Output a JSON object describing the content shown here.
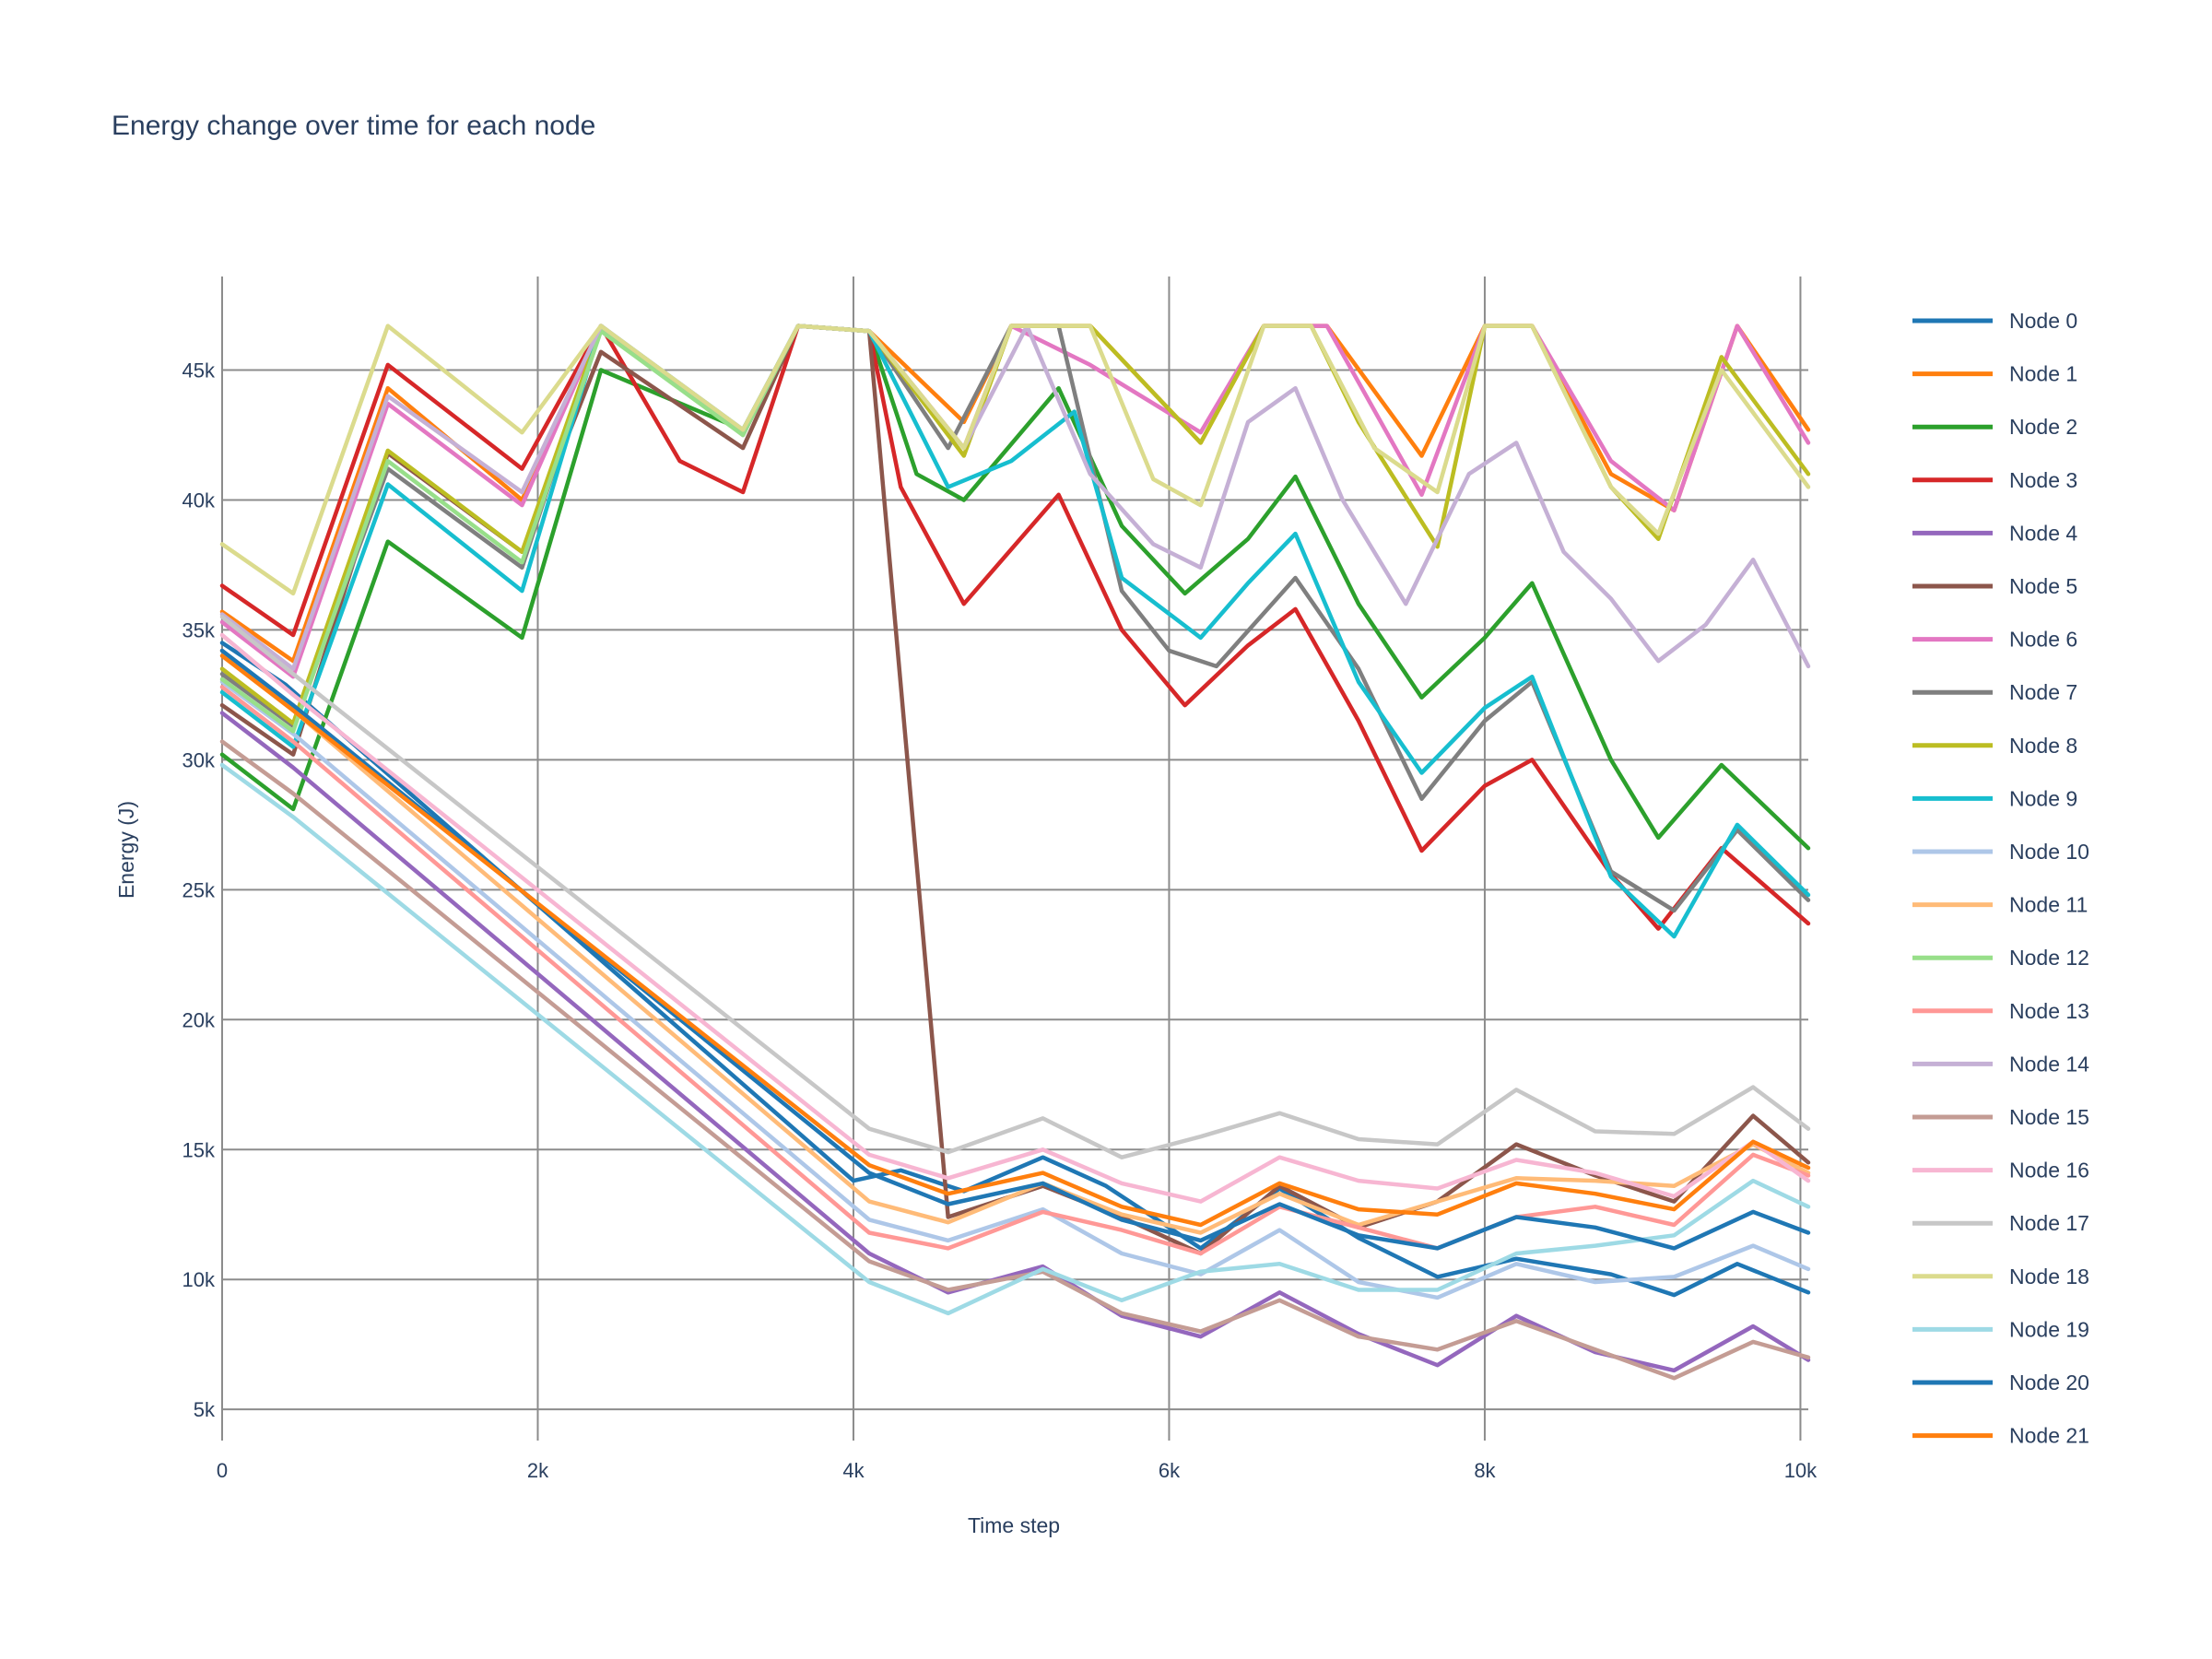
{
  "chart_data": {
    "type": "line",
    "title": "Energy change over time for each node",
    "xlabel": "Time step",
    "ylabel": "Energy (J)",
    "xlim": [
      0,
      10050
    ],
    "ylim": [
      3800,
      48600
    ],
    "x_ticks": [
      {
        "v": 0,
        "label": "0"
      },
      {
        "v": 2000,
        "label": "2k"
      },
      {
        "v": 4000,
        "label": "4k"
      },
      {
        "v": 6000,
        "label": "6k"
      },
      {
        "v": 8000,
        "label": "8k"
      },
      {
        "v": 10000,
        "label": "10k"
      }
    ],
    "y_ticks": [
      {
        "v": 5000,
        "label": "5k"
      },
      {
        "v": 10000,
        "label": "10k"
      },
      {
        "v": 15000,
        "label": "15k"
      },
      {
        "v": 20000,
        "label": "20k"
      },
      {
        "v": 25000,
        "label": "25k"
      },
      {
        "v": 30000,
        "label": "30k"
      },
      {
        "v": 35000,
        "label": "35k"
      },
      {
        "v": 40000,
        "label": "40k"
      },
      {
        "v": 45000,
        "label": "45k"
      }
    ],
    "grid": true,
    "legend_position": "right",
    "series": [
      {
        "name": "Node 0",
        "color": "#1f77b4",
        "x": [
          0,
          400,
          4000,
          4300,
          4700,
          5200,
          5600,
          6200,
          6700,
          7200,
          7700,
          8200,
          8800,
          9200,
          9600,
          10050
        ],
        "y": [
          34500,
          32900,
          13800,
          14200,
          13400,
          14700,
          13600,
          11200,
          13500,
          11600,
          10100,
          10800,
          10200,
          9400,
          10600,
          9500
        ]
      },
      {
        "name": "Node 1",
        "color": "#ff7f0e",
        "x": [
          0,
          450,
          1050,
          1900,
          2400,
          3300,
          3650,
          4100,
          4700,
          5000,
          5500,
          6200,
          6600,
          7000,
          7600,
          8000,
          8300,
          8800,
          9200,
          9600,
          10050
        ],
        "y": [
          35700,
          33800,
          44300,
          40000,
          46700,
          42600,
          46700,
          46500,
          43000,
          46700,
          46700,
          42200,
          46700,
          46700,
          41700,
          46700,
          46700,
          41000,
          39600,
          46700,
          42700
        ]
      },
      {
        "name": "Node 2",
        "color": "#2ca02c",
        "x": [
          0,
          450,
          1050,
          1900,
          2400,
          3300,
          3650,
          4100,
          4400,
          4700,
          5300,
          5700,
          6100,
          6500,
          6800,
          7200,
          7600,
          8000,
          8300,
          8800,
          9100,
          9500,
          10050
        ],
        "y": [
          30200,
          28100,
          38400,
          34700,
          45000,
          42700,
          46700,
          46500,
          41000,
          40000,
          44300,
          39000,
          36400,
          38500,
          40900,
          36000,
          32400,
          34700,
          36800,
          30000,
          27000,
          29800,
          26600
        ]
      },
      {
        "name": "Node 3",
        "color": "#d62728",
        "x": [
          0,
          450,
          1050,
          1900,
          2400,
          2900,
          3300,
          3650,
          4100,
          4300,
          4700,
          5300,
          5700,
          6100,
          6500,
          6800,
          7200,
          7600,
          8000,
          8300,
          8800,
          9100,
          9500,
          10050
        ],
        "y": [
          36700,
          34800,
          45200,
          41200,
          46700,
          41500,
          40300,
          46700,
          46500,
          40500,
          36000,
          40200,
          35000,
          32100,
          34400,
          35800,
          31500,
          26500,
          29000,
          30000,
          25600,
          23500,
          26600,
          23700
        ]
      },
      {
        "name": "Node 4",
        "color": "#9467bd",
        "x": [
          0,
          450,
          4100,
          4600,
          5200,
          5700,
          6200,
          6700,
          7200,
          7700,
          8200,
          8700,
          9200,
          9700,
          10050
        ],
        "y": [
          31800,
          29700,
          11000,
          9500,
          10500,
          8600,
          7800,
          9500,
          7900,
          6700,
          8600,
          7200,
          6500,
          8200,
          6900
        ]
      },
      {
        "name": "Node 5",
        "color": "#8c564b",
        "x": [
          0,
          450,
          1050,
          1900,
          2400,
          3300,
          3650,
          4100,
          4600,
          5200,
          5700,
          6200,
          6700,
          7200,
          7700,
          8200,
          8700,
          9200,
          9700,
          10050
        ],
        "y": [
          32100,
          30200,
          41800,
          38000,
          45700,
          42000,
          46700,
          46500,
          12400,
          13600,
          12400,
          11000,
          13600,
          12000,
          13000,
          15200,
          14000,
          13000,
          16300,
          14500
        ]
      },
      {
        "name": "Node 6",
        "color": "#e377c2",
        "x": [
          0,
          450,
          1050,
          1900,
          2400,
          3300,
          3650,
          4100,
          4700,
          5000,
          5500,
          6200,
          6600,
          7000,
          7600,
          8000,
          8300,
          8800,
          9200,
          9600,
          10050
        ],
        "y": [
          35300,
          33200,
          43700,
          39800,
          46700,
          42600,
          46700,
          46500,
          42000,
          46700,
          45200,
          42600,
          46700,
          46700,
          40200,
          46700,
          46700,
          41500,
          39600,
          46700,
          42200
        ]
      },
      {
        "name": "Node 7",
        "color": "#7f7f7f",
        "x": [
          0,
          450,
          1050,
          1900,
          2400,
          3300,
          3650,
          4100,
          4600,
          5000,
          5300,
          5700,
          6000,
          6300,
          6800,
          7200,
          7600,
          8000,
          8300,
          8800,
          9200,
          9600,
          10050
        ],
        "y": [
          33300,
          31300,
          41200,
          37400,
          46700,
          42500,
          46700,
          46500,
          42000,
          46700,
          46700,
          36500,
          34200,
          33600,
          37000,
          33500,
          28500,
          31500,
          33000,
          25700,
          24200,
          27300,
          24600
        ]
      },
      {
        "name": "Node 8",
        "color": "#bcbd22",
        "x": [
          0,
          450,
          1050,
          1900,
          2400,
          3300,
          3650,
          4100,
          4700,
          5000,
          5500,
          6200,
          6600,
          6900,
          7200,
          7700,
          8000,
          8300,
          8800,
          9100,
          9500,
          10050
        ],
        "y": [
          33500,
          31400,
          41900,
          38000,
          46700,
          42600,
          46700,
          46500,
          41700,
          46700,
          46700,
          42200,
          46700,
          46700,
          43000,
          38200,
          46700,
          46700,
          40500,
          38500,
          45500,
          41000
        ]
      },
      {
        "name": "Node 9",
        "color": "#17becf",
        "x": [
          0,
          450,
          1050,
          1900,
          2400,
          3300,
          3650,
          4100,
          4600,
          5000,
          5400,
          5700,
          6200,
          6500,
          6800,
          7200,
          7600,
          8000,
          8300,
          8800,
          9200,
          9600,
          10050
        ],
        "y": [
          32600,
          30500,
          40600,
          36500,
          46700,
          42700,
          46700,
          46500,
          40500,
          41500,
          43400,
          37000,
          34700,
          36800,
          38700,
          33000,
          29500,
          32000,
          33200,
          25500,
          23200,
          27500,
          24800
        ]
      },
      {
        "name": "Node 10",
        "color": "#aec7e8",
        "x": [
          0,
          450,
          4100,
          4600,
          5200,
          5700,
          6200,
          6700,
          7200,
          7700,
          8200,
          8700,
          9200,
          9700,
          10050
        ],
        "y": [
          33000,
          31000,
          12300,
          11500,
          12700,
          11000,
          10200,
          11900,
          9900,
          9300,
          10600,
          9900,
          10100,
          11300,
          10400
        ]
      },
      {
        "name": "Node 11",
        "color": "#ffbb78",
        "x": [
          0,
          450,
          4100,
          4600,
          5200,
          5700,
          6200,
          6700,
          7200,
          7700,
          8200,
          8700,
          9200,
          9700,
          10050
        ],
        "y": [
          34200,
          31900,
          13000,
          12200,
          13700,
          12500,
          11800,
          13300,
          12100,
          13000,
          13900,
          13800,
          13600,
          15200,
          14100
        ]
      },
      {
        "name": "Node 12",
        "color": "#98df8a",
        "x": [
          0,
          450,
          1050,
          1900,
          2400,
          3300,
          3650,
          4100
        ],
        "y": [
          33100,
          31100,
          41500,
          37600,
          46500,
          42500,
          46700,
          46500
        ]
      },
      {
        "name": "Node 13",
        "color": "#ff9896",
        "x": [
          0,
          450,
          4100,
          4600,
          5200,
          5700,
          6200,
          6700,
          7200,
          7700,
          8200,
          8700,
          9200,
          9700,
          10050
        ],
        "y": [
          32800,
          30700,
          11800,
          11200,
          12600,
          11900,
          11000,
          12800,
          12000,
          11200,
          12400,
          12800,
          12100,
          14800,
          14000
        ]
      },
      {
        "name": "Node 14",
        "color": "#c5b0d5",
        "x": [
          0,
          450,
          1050,
          1900,
          2400,
          3300,
          3650,
          4100,
          4700,
          5100,
          5500,
          5900,
          6200,
          6500,
          6800,
          7100,
          7500,
          7900,
          8200,
          8500,
          8800,
          9100,
          9400,
          9700,
          10050
        ],
        "y": [
          35600,
          33500,
          44000,
          40300,
          46700,
          42700,
          46700,
          46500,
          42000,
          46700,
          41000,
          38300,
          37400,
          43000,
          44300,
          40000,
          36000,
          41000,
          42200,
          38000,
          36200,
          33800,
          35200,
          37700,
          33600
        ]
      },
      {
        "name": "Node 15",
        "color": "#c49c94",
        "x": [
          0,
          450,
          4100,
          4600,
          5200,
          5700,
          6200,
          6700,
          7200,
          7700,
          8200,
          8700,
          9200,
          9700,
          10050
        ],
        "y": [
          30700,
          28700,
          10700,
          9600,
          10300,
          8700,
          8000,
          9200,
          7800,
          7300,
          8400,
          7300,
          6200,
          7600,
          7000
        ]
      },
      {
        "name": "Node 16",
        "color": "#f7b6d2",
        "x": [
          0,
          450,
          4100,
          4600,
          5200,
          5700,
          6200,
          6700,
          7200,
          7700,
          8200,
          8700,
          9200,
          9700,
          10050
        ],
        "y": [
          34800,
          32500,
          14800,
          13900,
          15000,
          13700,
          13000,
          14700,
          13800,
          13500,
          14600,
          14100,
          13200,
          15300,
          13800
        ]
      },
      {
        "name": "Node 17",
        "color": "#c7c7c7",
        "x": [
          0,
          450,
          4100,
          4600,
          5200,
          5700,
          6200,
          6700,
          7200,
          7700,
          8200,
          8700,
          9200,
          9700,
          10050
        ],
        "y": [
          35500,
          33300,
          15800,
          14900,
          16200,
          14700,
          15500,
          16400,
          15400,
          15200,
          17300,
          15700,
          15600,
          17400,
          15800
        ]
      },
      {
        "name": "Node 18",
        "color": "#dbdb8d",
        "x": [
          0,
          450,
          1050,
          1900,
          2400,
          3300,
          3650,
          4100,
          4700,
          5000,
          5500,
          5900,
          6200,
          6600,
          6900,
          7300,
          7700,
          8000,
          8300,
          8800,
          9100,
          9500,
          10050
        ],
        "y": [
          38300,
          36400,
          46700,
          42600,
          46700,
          42700,
          46700,
          46500,
          42000,
          46700,
          46700,
          40800,
          39800,
          46700,
          46700,
          42000,
          40300,
          46700,
          46700,
          40500,
          38700,
          45000,
          40500
        ]
      },
      {
        "name": "Node 19",
        "color": "#9edae5",
        "x": [
          0,
          450,
          4100,
          4600,
          5200,
          5700,
          6200,
          6700,
          7200,
          7700,
          8200,
          8700,
          9200,
          9700,
          10050
        ],
        "y": [
          29800,
          27800,
          9900,
          8700,
          10400,
          9200,
          10300,
          10600,
          9600,
          9600,
          11000,
          11300,
          11700,
          13800,
          12800
        ]
      },
      {
        "name": "Node 20",
        "color": "#1f77b4",
        "x": [
          0,
          450,
          4100,
          4600,
          5200,
          5700,
          6200,
          6700,
          7200,
          7700,
          8200,
          8700,
          9200,
          9700,
          10050
        ],
        "y": [
          34200,
          32100,
          14100,
          12900,
          13700,
          12300,
          11500,
          12900,
          11700,
          11200,
          12400,
          12000,
          11200,
          12600,
          11800
        ]
      },
      {
        "name": "Node 21",
        "color": "#ff7f0e",
        "x": [
          0,
          450,
          4100,
          4600,
          5200,
          5700,
          6200,
          6700,
          7200,
          7700,
          8200,
          8700,
          9200,
          9700,
          10050
        ],
        "y": [
          34000,
          31900,
          14400,
          13300,
          14100,
          12800,
          12100,
          13700,
          12700,
          12500,
          13700,
          13300,
          12700,
          15300,
          14300
        ]
      }
    ]
  }
}
